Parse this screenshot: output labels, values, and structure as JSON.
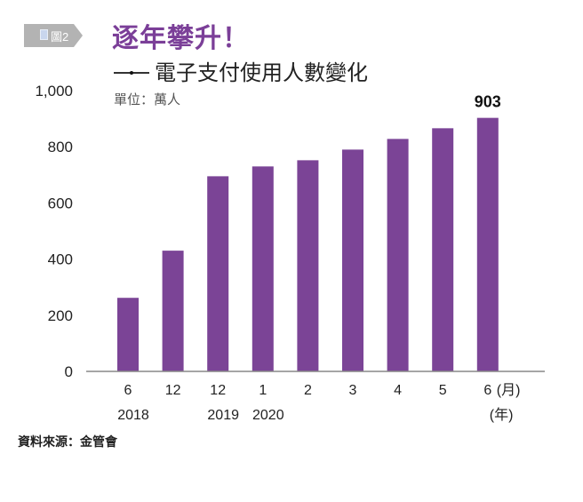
{
  "header": {
    "figure_badge": "圖2",
    "title": "逐年攀升！",
    "subtitle": "電子支付使用人數變化",
    "unit": "單位：萬人"
  },
  "footer": {
    "source": "資料來源：金管會"
  },
  "colors": {
    "bar": "#7b4496",
    "title": "#7b3f98",
    "badge": "#b3b3b3",
    "axis": "#888888"
  },
  "chart_data": {
    "type": "bar",
    "title": "逐年攀升！ —— 電子支付使用人數變化",
    "ylabel": "單位：萬人",
    "xlabel": "(月) (年)",
    "x_unit_month": "(月)",
    "x_unit_year": "(年)",
    "categories": [
      "2018/6",
      "2018/12",
      "2019/12",
      "2020/1",
      "2020/2",
      "2020/3",
      "2020/4",
      "2020/5",
      "2020/6"
    ],
    "month_labels": [
      "6",
      "12",
      "12",
      "1",
      "2",
      "3",
      "4",
      "5",
      "6"
    ],
    "year_labels": [
      "2018",
      "",
      "2019",
      "2020",
      "",
      "",
      "",
      "",
      ""
    ],
    "values": [
      262,
      430,
      695,
      730,
      752,
      790,
      828,
      866,
      903
    ],
    "data_labels": [
      "",
      "",
      "",
      "",
      "",
      "",
      "",
      "",
      "903"
    ],
    "ylim": [
      0,
      1000
    ],
    "yticks": [
      0,
      200,
      400,
      600,
      800,
      1000
    ],
    "ytick_labels": [
      "0",
      "200",
      "400",
      "600",
      "800",
      "1,000"
    ],
    "grid": false,
    "legend": "none"
  }
}
